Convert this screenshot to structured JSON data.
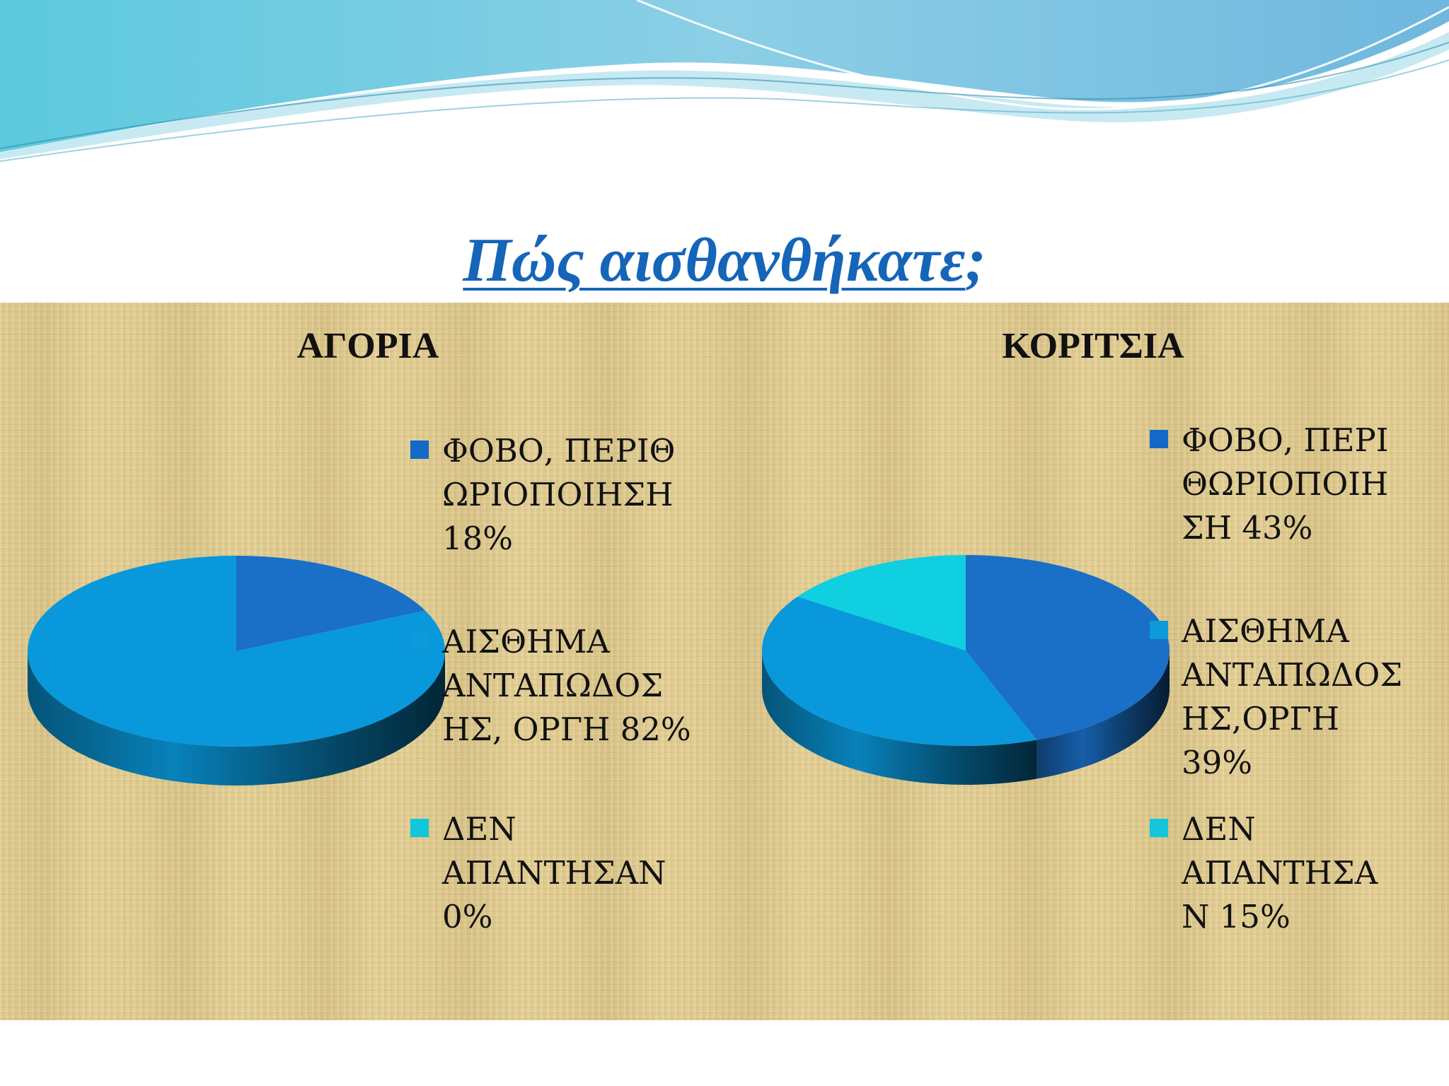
{
  "title": "Πώς αισθανθήκατε",
  "title_mark": ";",
  "colors": {
    "title": "#1565b8",
    "slice_fear": "#1a6fc6",
    "slice_anger": "#0998db",
    "slice_none": "#10cfe0",
    "icon_fear": "#1469c6",
    "icon_anger": "#0c9ad9",
    "icon_none": "#14c6da"
  },
  "chart_data": [
    {
      "type": "pie",
      "title": "ΑΓΟΡΙΑ",
      "categories": [
        "ΦΟΒΟ, ΠΕΡΙΘΩΡΙΟΠΟΙΗΣΗ",
        "ΑΙΣΘΗΜΑ ΑΝΤΑΠΩΔΟΣΗΣ, ΟΡΓΗ",
        "ΔΕΝ ΑΠΑΝΤΗΣΑΝ"
      ],
      "values": [
        18,
        82,
        0
      ],
      "legend_lines": [
        [
          "ΦΟΒΟ, ΠΕΡΙΘ",
          "ΩΡΙΟΠΟΙΗΣΗ",
          "18%"
        ],
        [
          "ΑΙΣΘΗΜΑ",
          "ΑΝΤΑΠΩΔΟΣ",
          "ΗΣ, ΟΡΓΗ 82%"
        ],
        [
          "ΔΕΝ",
          "ΑΠΑΝΤΗΣΑΝ",
          "0%"
        ]
      ],
      "legend_position": "right"
    },
    {
      "type": "pie",
      "title": "ΚΟΡΙΤΣΙΑ",
      "categories": [
        "ΦΟΒΟ, ΠΕΡΙΘΩΡΙΟΠΟΙΗΣΗ",
        "ΑΙΣΘΗΜΑ ΑΝΤΑΠΩΔΟΣΗΣ, ΟΡΓΗ",
        "ΔΕΝ ΑΠΑΝΤΗΣΑΝ"
      ],
      "values": [
        43,
        39,
        15
      ],
      "legend_lines": [
        [
          "ΦΟΒΟ, ΠΕΡΙ",
          "ΘΩΡΙΟΠΟΙΗ",
          "ΣΗ 43%"
        ],
        [
          "ΑΙΣΘΗΜΑ",
          "ΑΝΤΑΠΩΔΟΣ",
          "ΗΣ,ΟΡΓΗ",
          "39%"
        ],
        [
          "ΔΕΝ",
          "ΑΠΑΝΤΗΣΑ",
          "Ν 15%"
        ]
      ],
      "legend_position": "right"
    }
  ]
}
